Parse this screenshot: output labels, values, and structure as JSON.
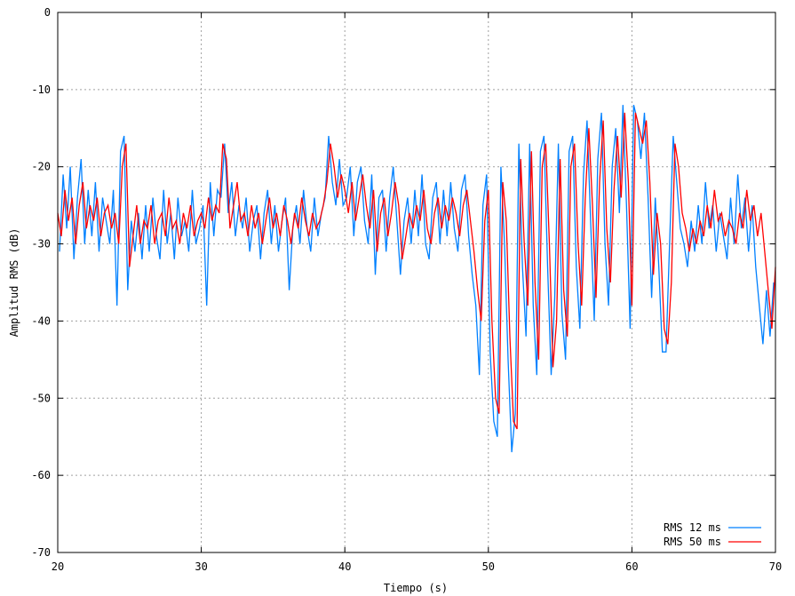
{
  "chart_data": {
    "type": "line",
    "title": "",
    "xlabel": "Tiempo (s)",
    "ylabel": "Amplitud RMS (dB)",
    "xlim": [
      20,
      70
    ],
    "ylim": [
      -70,
      0
    ],
    "xticks": [
      20,
      30,
      40,
      50,
      60,
      70
    ],
    "yticks": [
      0,
      -10,
      -20,
      -30,
      -40,
      -50,
      -60,
      -70
    ],
    "grid": true,
    "legend_position": "bottom-right",
    "series": [
      {
        "name": "RMS 12 ms",
        "color": "#0080ff",
        "x_start": 20.125,
        "x_step": 0.25,
        "values": [
          -31,
          -21,
          -28,
          -20,
          -32,
          -24,
          -19,
          -30,
          -23,
          -29,
          -22,
          -31,
          -24,
          -27,
          -30,
          -23,
          -38,
          -18,
          -16,
          -36,
          -27,
          -31,
          -26,
          -32,
          -25,
          -31,
          -24,
          -29,
          -32,
          -23,
          -30,
          -26,
          -32,
          -24,
          -29,
          -27,
          -31,
          -23,
          -30,
          -28,
          -25,
          -38,
          -22,
          -29,
          -23,
          -24,
          -17,
          -26,
          -22,
          -29,
          -25,
          -28,
          -24,
          -31,
          -27,
          -25,
          -32,
          -26,
          -23,
          -30,
          -25,
          -31,
          -27,
          -24,
          -36,
          -28,
          -25,
          -30,
          -23,
          -28,
          -31,
          -24,
          -29,
          -26,
          -24,
          -16,
          -22,
          -25,
          -19,
          -25,
          -24,
          -20,
          -29,
          -22,
          -20,
          -27,
          -30,
          -21,
          -34,
          -24,
          -23,
          -31,
          -24,
          -20,
          -27,
          -34,
          -27,
          -24,
          -30,
          -23,
          -29,
          -21,
          -30,
          -32,
          -24,
          -22,
          -30,
          -23,
          -29,
          -22,
          -28,
          -31,
          -23,
          -21,
          -29,
          -34,
          -38,
          -47,
          -25,
          -21,
          -44,
          -53,
          -55,
          -20,
          -30,
          -45,
          -57,
          -52,
          -17,
          -33,
          -42,
          -17,
          -38,
          -47,
          -18,
          -16,
          -33,
          -47,
          -37,
          -17,
          -39,
          -45,
          -18,
          -16,
          -33,
          -41,
          -21,
          -14,
          -27,
          -40,
          -19,
          -13,
          -30,
          -38,
          -20,
          -15,
          -26,
          -12,
          -25,
          -41,
          -12,
          -14,
          -19,
          -13,
          -24,
          -37,
          -24,
          -33,
          -44,
          -44,
          -30,
          -16,
          -22,
          -28,
          -30,
          -33,
          -27,
          -31,
          -25,
          -30,
          -22,
          -28,
          -25,
          -31,
          -26,
          -29,
          -32,
          -24,
          -30,
          -21,
          -28,
          -24,
          -31,
          -25,
          -33,
          -38,
          -43,
          -36,
          -42,
          -35
        ]
      },
      {
        "name": "RMS 50 ms",
        "color": "#ff0000",
        "x_start": 20,
        "x_step": 0.25,
        "values": [
          -26,
          -29,
          -23,
          -27,
          -24,
          -30,
          -25,
          -22,
          -28,
          -25,
          -27,
          -24,
          -29,
          -26,
          -25,
          -28,
          -26,
          -30,
          -20,
          -17,
          -33,
          -29,
          -25,
          -30,
          -27,
          -28,
          -25,
          -30,
          -27,
          -26,
          -29,
          -24,
          -28,
          -27,
          -30,
          -26,
          -28,
          -25,
          -29,
          -27,
          -26,
          -28,
          -24,
          -27,
          -25,
          -26,
          -17,
          -19,
          -28,
          -25,
          -22,
          -27,
          -26,
          -29,
          -25,
          -28,
          -26,
          -30,
          -27,
          -24,
          -28,
          -26,
          -29,
          -25,
          -27,
          -30,
          -26,
          -28,
          -24,
          -27,
          -29,
          -26,
          -28,
          -27,
          -25,
          -22,
          -17,
          -20,
          -24,
          -21,
          -23,
          -26,
          -22,
          -27,
          -24,
          -21,
          -25,
          -28,
          -23,
          -31,
          -26,
          -24,
          -29,
          -26,
          -22,
          -25,
          -32,
          -29,
          -26,
          -28,
          -25,
          -27,
          -23,
          -28,
          -30,
          -26,
          -24,
          -28,
          -25,
          -27,
          -24,
          -26,
          -29,
          -25,
          -23,
          -27,
          -31,
          -36,
          -40,
          -27,
          -23,
          -40,
          -50,
          -52,
          -22,
          -27,
          -42,
          -53,
          -54,
          -19,
          -30,
          -38,
          -18,
          -35,
          -45,
          -20,
          -17,
          -30,
          -46,
          -40,
          -19,
          -36,
          -42,
          -20,
          -17,
          -30,
          -38,
          -24,
          -15,
          -25,
          -37,
          -22,
          -14,
          -28,
          -35,
          -23,
          -16,
          -24,
          -13,
          -22,
          -38,
          -13,
          -15,
          -17,
          -14,
          -22,
          -34,
          -26,
          -30,
          -41,
          -43,
          -35,
          -17,
          -20,
          -26,
          -28,
          -31,
          -28,
          -30,
          -27,
          -29,
          -25,
          -28,
          -23,
          -27,
          -26,
          -29,
          -27,
          -28,
          -30,
          -26,
          -28,
          -23,
          -27,
          -25,
          -29,
          -26,
          -31,
          -36,
          -41,
          -33
        ]
      }
    ]
  }
}
